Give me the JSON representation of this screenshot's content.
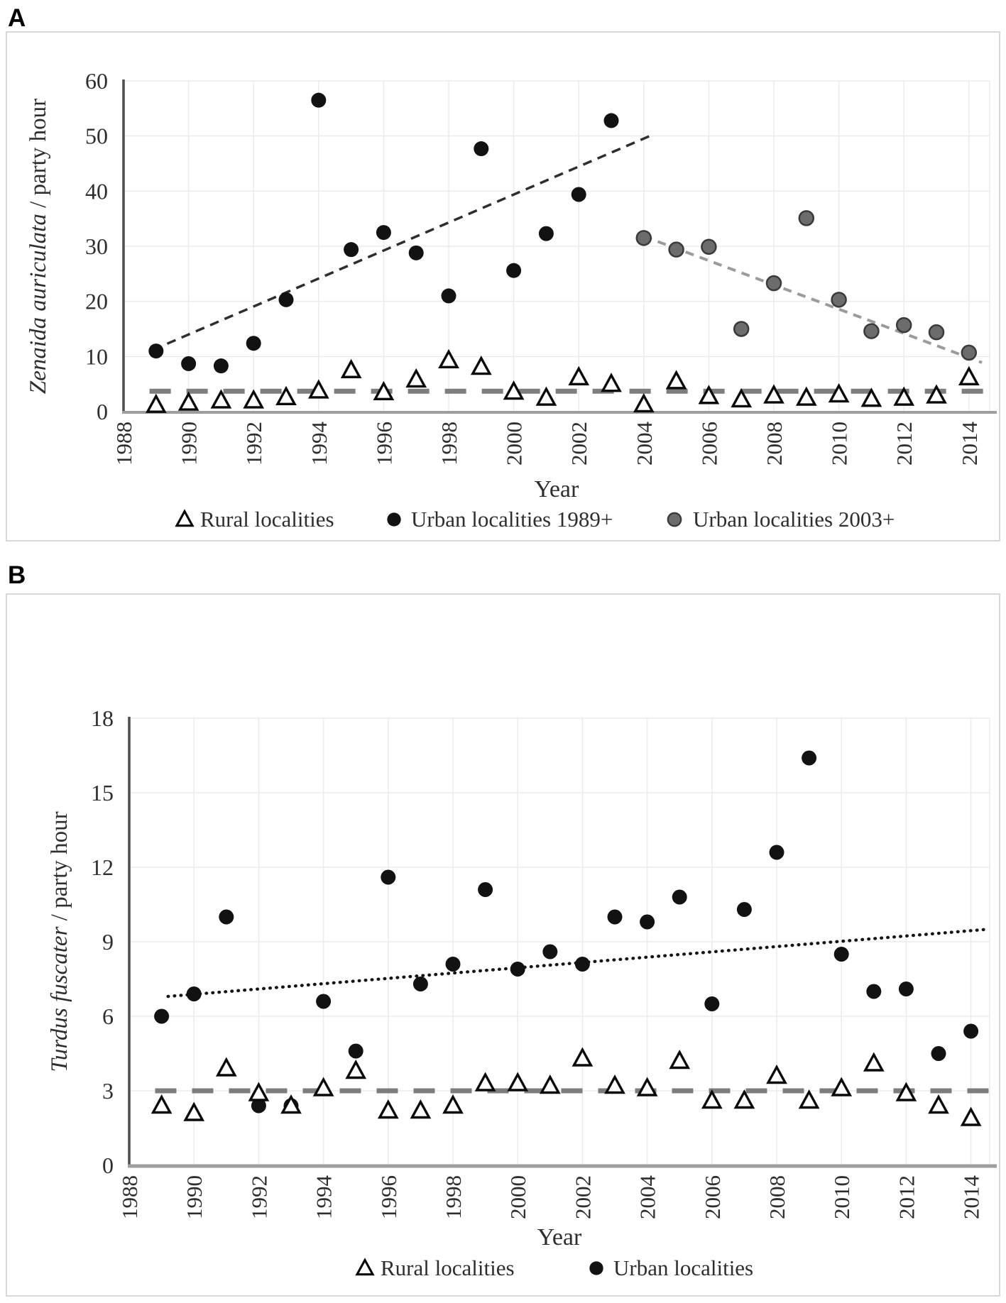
{
  "page": {
    "panel_a_label": "A",
    "panel_b_label": "B"
  },
  "colors": {
    "point_black": "#121212",
    "point_gray_fill": "#6c6c6c",
    "point_gray_stroke": "#3a3a3a",
    "triangle_stroke": "#0a0a0a",
    "triangle_fill": "#ffffff",
    "trend_dark": "#2e2e2e",
    "trend_light": "#9b9b9b",
    "rural_mean_line": "#7d7d7d",
    "dotted_trend": "#151515",
    "grid": "#ebebeb",
    "axis_y": "#4d4d4d",
    "axis_x": "#9e9e9e",
    "text": "#2e2e2e",
    "panel_border": "#d8d8d8"
  },
  "chart_data": [
    {
      "id": "panel_a",
      "type": "scatter",
      "ylabel_italic": "Zenaida auriculata",
      "ylabel_regular": " / party hour",
      "xlabel": "Year",
      "ylim": [
        0,
        60
      ],
      "xlim": [
        1988,
        2014.6
      ],
      "yticks": [
        0,
        10,
        20,
        30,
        40,
        50,
        60
      ],
      "xticks": [
        1988,
        1990,
        1992,
        1994,
        1996,
        1998,
        2000,
        2002,
        2004,
        2006,
        2008,
        2010,
        2012,
        2014
      ],
      "grid": true,
      "legend_position": "bottom",
      "series": [
        {
          "name": "Urban localities 1989+",
          "marker": "circle-black",
          "x": [
            1989,
            1990,
            1991,
            1992,
            1993,
            1994,
            1995,
            1996,
            1997,
            1998,
            1999,
            2000,
            2001,
            2002,
            2003
          ],
          "values": [
            11.0,
            8.7,
            8.3,
            12.4,
            20.3,
            56.5,
            29.4,
            32.5,
            28.8,
            21.0,
            47.7,
            25.6,
            32.3,
            39.4,
            52.8
          ]
        },
        {
          "name": "Urban localities 2003+",
          "marker": "circle-gray",
          "x": [
            2004,
            2005,
            2006,
            2007,
            2008,
            2009,
            2010,
            2011,
            2012,
            2013,
            2014
          ],
          "values": [
            31.5,
            29.4,
            29.9,
            15.0,
            23.3,
            35.1,
            20.3,
            14.6,
            15.7,
            14.4,
            10.7
          ]
        },
        {
          "name": "Rural localities",
          "marker": "triangle-open",
          "x": [
            1989,
            1990,
            1991,
            1992,
            1993,
            1994,
            1995,
            1996,
            1997,
            1998,
            1999,
            2000,
            2001,
            2002,
            2003,
            2004,
            2005,
            2006,
            2007,
            2008,
            2009,
            2010,
            2011,
            2012,
            2013,
            2014
          ],
          "values": [
            1.2,
            1.6,
            2.0,
            2.0,
            2.6,
            3.8,
            7.5,
            3.5,
            5.8,
            9.3,
            8.1,
            3.6,
            2.5,
            6.2,
            5.0,
            1.3,
            5.5,
            2.8,
            2.2,
            2.9,
            2.5,
            3.1,
            2.3,
            2.5,
            2.9,
            6.2
          ]
        }
      ],
      "trendlines": [
        {
          "series": "Urban localities 1989+",
          "style": "dashed-dark",
          "x1": 1988.9,
          "y1": 11.2,
          "x2": 2004.3,
          "y2": 50.3
        },
        {
          "series": "Urban localities 2003+",
          "style": "dashed-light",
          "x1": 2004.0,
          "y1": 31.8,
          "x2": 2014.4,
          "y2": 8.9
        },
        {
          "series": "Rural localities mean",
          "style": "dashed-thick",
          "x1": 1988.8,
          "y1": 3.7,
          "x2": 2014.6,
          "y2": 3.7
        }
      ],
      "legend": [
        {
          "label": "Rural localities",
          "marker": "triangle-open"
        },
        {
          "label": "Urban localities 1989+",
          "marker": "circle-black"
        },
        {
          "label": "Urban localities 2003+",
          "marker": "circle-gray"
        }
      ]
    },
    {
      "id": "panel_b",
      "type": "scatter",
      "ylabel_italic": "Turdus fuscater",
      "ylabel_regular": " / party hour",
      "xlabel": "Year",
      "ylim": [
        0,
        18
      ],
      "xlim": [
        1988,
        2014.6
      ],
      "yticks": [
        0,
        3,
        6,
        9,
        12,
        15,
        18
      ],
      "xticks": [
        1988,
        1990,
        1992,
        1994,
        1996,
        1998,
        2000,
        2002,
        2004,
        2006,
        2008,
        2010,
        2012,
        2014
      ],
      "grid": true,
      "legend_position": "bottom",
      "series": [
        {
          "name": "Urban localities",
          "marker": "circle-black",
          "x": [
            1989,
            1990,
            1991,
            1992,
            1993,
            1994,
            1995,
            1996,
            1997,
            1998,
            1999,
            2000,
            2001,
            2002,
            2003,
            2004,
            2005,
            2006,
            2007,
            2008,
            2009,
            2010,
            2011,
            2012,
            2013,
            2014
          ],
          "values": [
            6.0,
            6.9,
            10.0,
            2.4,
            2.4,
            6.6,
            4.6,
            11.6,
            7.3,
            8.1,
            11.1,
            7.9,
            8.6,
            8.1,
            10.0,
            9.8,
            10.8,
            6.5,
            10.3,
            12.6,
            16.4,
            8.5,
            7.0,
            7.1,
            4.5,
            5.4
          ]
        },
        {
          "name": "Rural localities",
          "marker": "triangle-open",
          "x": [
            1989,
            1990,
            1991,
            1992,
            1993,
            1994,
            1995,
            1996,
            1997,
            1998,
            1999,
            2000,
            2001,
            2002,
            2003,
            2004,
            2005,
            2006,
            2007,
            2008,
            2009,
            2010,
            2011,
            2012,
            2013,
            2014
          ],
          "values": [
            2.4,
            2.1,
            3.9,
            2.9,
            2.4,
            3.1,
            3.8,
            2.2,
            2.2,
            2.4,
            3.3,
            3.3,
            3.2,
            4.3,
            3.2,
            3.1,
            4.2,
            2.6,
            2.6,
            3.6,
            2.6,
            3.1,
            4.1,
            2.9,
            2.4,
            1.9
          ]
        }
      ],
      "trendlines": [
        {
          "series": "Urban localities",
          "style": "dotted",
          "x1": 1989.2,
          "y1": 6.8,
          "x2": 2014.5,
          "y2": 9.5
        },
        {
          "series": "Rural localities mean",
          "style": "dashed-thick",
          "x1": 1988.8,
          "y1": 3.0,
          "x2": 2014.6,
          "y2": 3.0
        }
      ],
      "legend": [
        {
          "label": "Rural localities",
          "marker": "triangle-open"
        },
        {
          "label": "Urban localities",
          "marker": "circle-black"
        }
      ]
    }
  ]
}
